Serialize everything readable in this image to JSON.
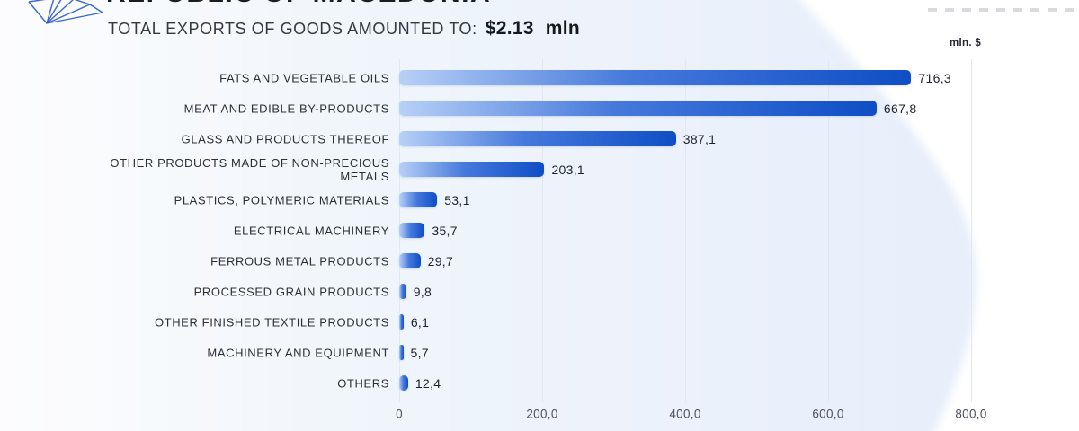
{
  "page": {
    "title": "REPUBLIC OF MACEDONIA",
    "subtitle_label": "TOTAL EXPORTS OF GOODS AMOUNTED TO:",
    "total_value": "$2.13",
    "total_unit": "mln",
    "axis_unit_label": "mln. $",
    "logo": "blue-lowpoly-crystal-logo"
  },
  "colors": {
    "bar_gradient_start": "#b7d0f6",
    "bar_gradient_mid": "#4679dc",
    "bar_gradient_end": "#0f4ec5",
    "background_blob": "#e8effa",
    "gridline": "#e2e8f1",
    "title_text": "#1a1e24",
    "category_text": "#2b3038",
    "tick_text": "#4d525b",
    "logo_stroke": "#3b66c9"
  },
  "chart_data": {
    "type": "bar",
    "orientation": "horizontal",
    "title": "TOTAL EXPORTS OF GOODS AMOUNTED TO: $2.13 mln",
    "unit": "mln. $",
    "categories": [
      "FATS AND VEGETABLE OILS",
      "MEAT AND EDIBLE BY-PRODUCTS",
      "GLASS AND PRODUCTS THEREOF",
      "OTHER PRODUCTS MADE OF NON-PRECIOUS METALS",
      "PLASTICS, POLYMERIC MATERIALS",
      "ELECTRICAL MACHINERY",
      "FERROUS METAL PRODUCTS",
      "PROCESSED GRAIN PRODUCTS",
      "OTHER FINISHED TEXTILE PRODUCTS",
      "MACHINERY AND EQUIPMENT",
      "OTHERS"
    ],
    "values": [
      716.3,
      667.8,
      387.1,
      203.1,
      53.1,
      35.7,
      29.7,
      9.8,
      6.1,
      5.7,
      12.4
    ],
    "value_labels": [
      "716,3",
      "667,8",
      "387,1",
      "203,1",
      "53,1",
      "35,7",
      "29,7",
      "9,8",
      "6,1",
      "5,7",
      "12,4"
    ],
    "x_ticks": [
      {
        "value": 0,
        "label": "0"
      },
      {
        "value": 200,
        "label": "200,0"
      },
      {
        "value": 400,
        "label": "400,0"
      },
      {
        "value": 600,
        "label": "600,0"
      },
      {
        "value": 800,
        "label": "800,0"
      }
    ],
    "xlim": [
      0,
      800
    ],
    "grid": true,
    "legend": false
  }
}
